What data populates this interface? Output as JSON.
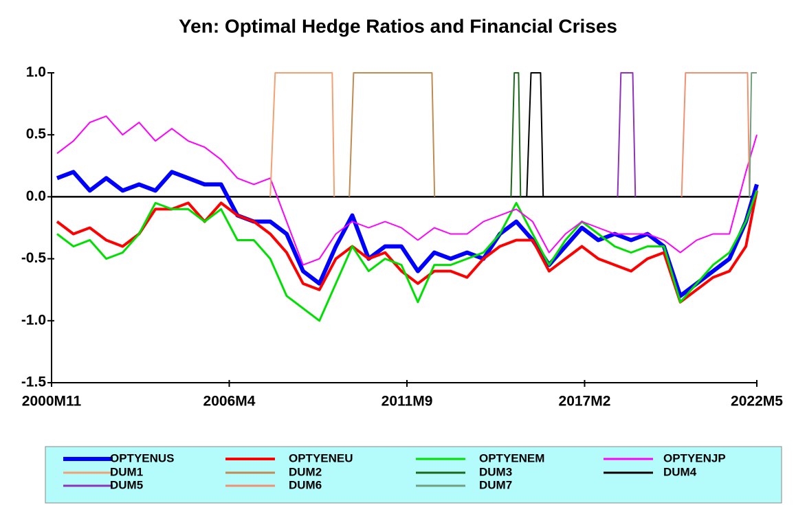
{
  "chart_data": {
    "type": "line",
    "title": "Yen: Optimal Hedge Ratios and Financial Crises",
    "xlim": [
      2000.833,
      2022.333
    ],
    "xticks": [
      {
        "value": 2000.833,
        "label": "2000M11"
      },
      {
        "value": 2006.25,
        "label": "2006M4"
      },
      {
        "value": 2011.667,
        "label": "2011M9"
      },
      {
        "value": 2017.083,
        "label": "2017M2"
      },
      {
        "value": 2022.333,
        "label": "2022M5"
      }
    ],
    "ylim": [
      -1.5,
      1.0
    ],
    "yticks": [
      -1.5,
      {
        "value": -1,
        "label": "-1.0"
      },
      -0.5,
      {
        "value": 0,
        "label": "0.0"
      },
      0.5,
      {
        "value": 1,
        "label": "1.0"
      }
    ],
    "x": [
      2001.0,
      2001.5,
      2002.0,
      2002.5,
      2003.0,
      2003.5,
      2004.0,
      2004.5,
      2005.0,
      2005.5,
      2006.0,
      2006.5,
      2007.0,
      2007.5,
      2008.0,
      2008.5,
      2009.0,
      2009.5,
      2010.0,
      2010.5,
      2011.0,
      2011.5,
      2012.0,
      2012.5,
      2013.0,
      2013.5,
      2014.0,
      2014.5,
      2015.0,
      2015.5,
      2016.0,
      2016.5,
      2017.0,
      2017.5,
      2018.0,
      2018.5,
      2019.0,
      2019.5,
      2020.0,
      2020.5,
      2021.0,
      2021.5,
      2022.0,
      2022.333
    ],
    "series": [
      {
        "name": "OPTYENUS",
        "color": "#0000ff",
        "width": 6,
        "values": [
          0.15,
          0.2,
          0.05,
          0.15,
          0.05,
          0.1,
          0.05,
          0.2,
          0.15,
          0.1,
          0.1,
          -0.15,
          -0.2,
          -0.2,
          -0.3,
          -0.6,
          -0.7,
          -0.4,
          -0.15,
          -0.5,
          -0.4,
          -0.4,
          -0.6,
          -0.45,
          -0.5,
          -0.45,
          -0.5,
          -0.3,
          -0.2,
          -0.35,
          -0.55,
          -0.4,
          -0.25,
          -0.35,
          -0.3,
          -0.35,
          -0.3,
          -0.4,
          -0.8,
          -0.7,
          -0.6,
          -0.5,
          -0.2,
          0.1
        ]
      },
      {
        "name": "OPTYENEU",
        "color": "#ff0000",
        "width": 4,
        "values": [
          -0.2,
          -0.3,
          -0.25,
          -0.35,
          -0.4,
          -0.3,
          -0.1,
          -0.1,
          -0.05,
          -0.2,
          -0.05,
          -0.15,
          -0.2,
          -0.3,
          -0.45,
          -0.7,
          -0.75,
          -0.5,
          -0.4,
          -0.5,
          -0.45,
          -0.6,
          -0.7,
          -0.6,
          -0.6,
          -0.65,
          -0.5,
          -0.4,
          -0.35,
          -0.35,
          -0.6,
          -0.5,
          -0.4,
          -0.5,
          -0.55,
          -0.6,
          -0.5,
          -0.45,
          -0.85,
          -0.75,
          -0.65,
          -0.6,
          -0.4,
          0.05
        ]
      },
      {
        "name": "OPTYENEM",
        "color": "#00e000",
        "width": 3,
        "values": [
          -0.3,
          -0.4,
          -0.35,
          -0.5,
          -0.45,
          -0.3,
          -0.05,
          -0.1,
          -0.1,
          -0.2,
          -0.1,
          -0.35,
          -0.35,
          -0.5,
          -0.8,
          -0.9,
          -1.0,
          -0.7,
          -0.4,
          -0.6,
          -0.5,
          -0.55,
          -0.85,
          -0.55,
          -0.55,
          -0.5,
          -0.45,
          -0.3,
          -0.05,
          -0.3,
          -0.55,
          -0.35,
          -0.2,
          -0.3,
          -0.4,
          -0.45,
          -0.4,
          -0.4,
          -0.85,
          -0.7,
          -0.55,
          -0.45,
          -0.2,
          0.05
        ]
      },
      {
        "name": "OPTYENJP",
        "color": "#ff00ff",
        "width": 2,
        "values": [
          0.35,
          0.45,
          0.6,
          0.65,
          0.5,
          0.6,
          0.45,
          0.55,
          0.45,
          0.4,
          0.3,
          0.15,
          0.1,
          0.15,
          -0.2,
          -0.55,
          -0.5,
          -0.3,
          -0.2,
          -0.25,
          -0.2,
          -0.25,
          -0.35,
          -0.25,
          -0.3,
          -0.3,
          -0.2,
          -0.15,
          -0.1,
          -0.2,
          -0.45,
          -0.3,
          -0.2,
          -0.25,
          -0.3,
          -0.3,
          -0.3,
          -0.35,
          -0.45,
          -0.35,
          -0.3,
          -0.3,
          0.2,
          0.5
        ]
      },
      {
        "name": "DUM1",
        "color": "#f4a070",
        "width": 2,
        "x": [
          2007.5,
          2007.65,
          2009.39,
          2009.45
        ],
        "values": [
          0,
          1,
          1,
          0
        ]
      },
      {
        "name": "DUM2",
        "color": "#c08a50",
        "width": 2,
        "x": [
          2009.91,
          2010.04,
          2012.43,
          2012.51
        ],
        "values": [
          0,
          1,
          1,
          0
        ]
      },
      {
        "name": "DUM3",
        "color": "#1a6a1a",
        "width": 2,
        "x": [
          2014.84,
          2014.94,
          2015.07,
          2015.13
        ],
        "values": [
          0,
          1,
          1,
          0
        ]
      },
      {
        "name": "DUM4",
        "color": "#000000",
        "width": 2,
        "x": [
          2015.32,
          2015.45,
          2015.74,
          2015.82
        ],
        "values": [
          0,
          1,
          1,
          0
        ]
      },
      {
        "name": "DUM5",
        "color": "#9030c0",
        "width": 2,
        "x": [
          2018.09,
          2018.19,
          2018.55,
          2018.63
        ],
        "values": [
          0,
          1,
          1,
          0
        ]
      },
      {
        "name": "DUM6",
        "color": "#f49070",
        "width": 2,
        "x": [
          2020.04,
          2020.16,
          2022.05,
          2022.11
        ],
        "values": [
          0,
          1,
          1,
          0
        ]
      },
      {
        "name": "DUM7",
        "color": "#70a080",
        "width": 2,
        "x": [
          2022.11,
          2022.17,
          2022.333
        ],
        "values": [
          0,
          1,
          1
        ]
      }
    ]
  }
}
